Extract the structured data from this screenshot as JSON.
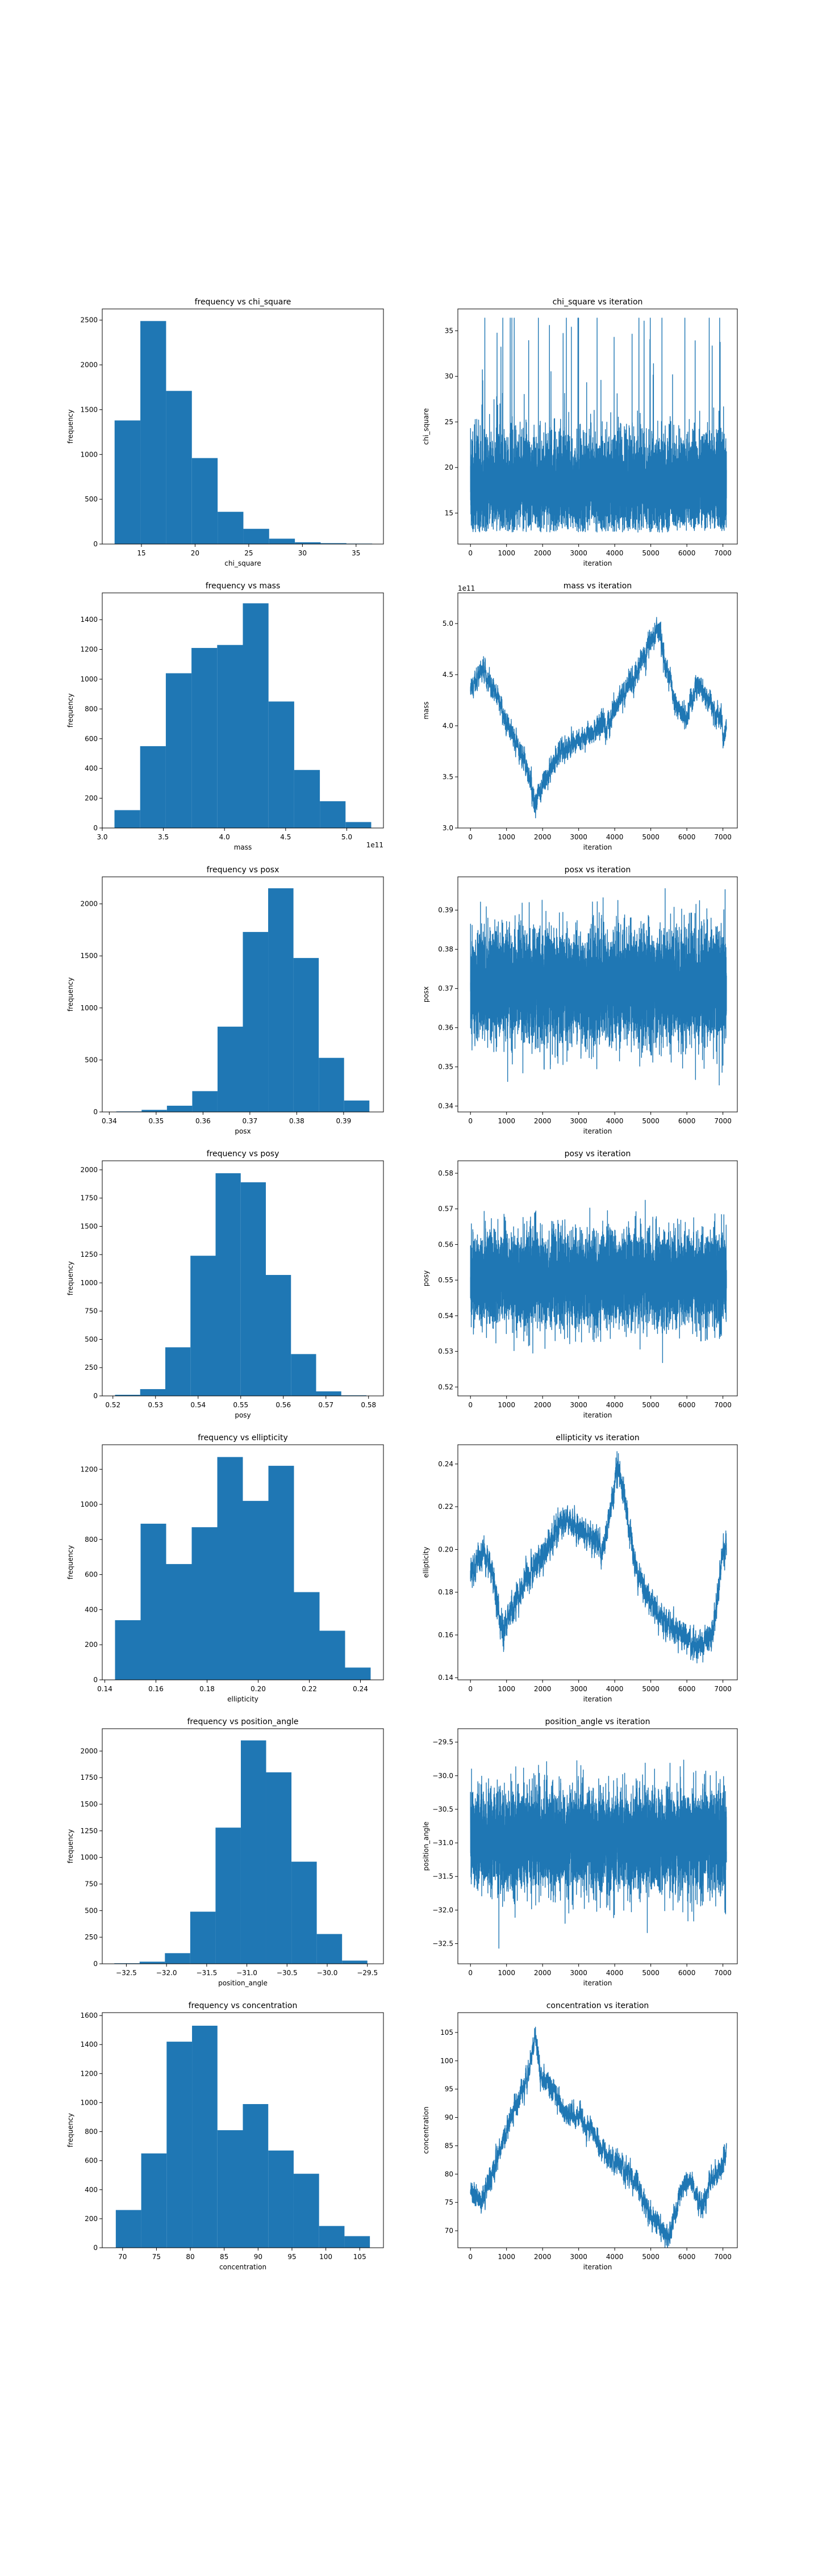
{
  "chart_data": [
    {
      "type": "bar",
      "title": "frequency vs chi_square",
      "xlabel": "chi_square",
      "ylabel": "frequency",
      "xlim": [
        11.35,
        37.55
      ],
      "ylim": [
        0,
        2625
      ],
      "x_ticks": [
        15,
        20,
        25,
        30,
        35
      ],
      "y_ticks": [
        0,
        500,
        1000,
        1500,
        2000,
        2500
      ],
      "bin_edges": [
        12.5,
        14.9,
        17.3,
        19.7,
        22.1,
        24.5,
        26.9,
        29.3,
        31.7,
        34.1,
        36.5
      ],
      "counts": [
        1380,
        2490,
        1710,
        960,
        360,
        170,
        60,
        20,
        10,
        5
      ],
      "color": "#1f77b4"
    },
    {
      "type": "line",
      "title": "chi_square vs iteration",
      "xlabel": "iteration",
      "ylabel": "chi_square",
      "xlim": [
        -350,
        7400
      ],
      "ylim": [
        11.6,
        37.4
      ],
      "x_ticks": [
        0,
        1000,
        2000,
        3000,
        4000,
        5000,
        6000,
        7000
      ],
      "y_ticks": [
        15,
        20,
        25,
        30,
        35
      ],
      "n_points": 7100,
      "trace": {
        "kind": "noise",
        "center": 18.2,
        "spread": 2.6,
        "floor": 12.9,
        "cap": 36.4,
        "spike_rate": 0.006
      },
      "color": "#1f77b4"
    },
    {
      "type": "bar",
      "title": "frequency vs mass",
      "xlabel": "mass",
      "ylabel": "frequency",
      "x_offset_label": "1e11",
      "xlim": [
        3.0,
        5.3
      ],
      "ylim": [
        0,
        1580
      ],
      "x_ticks": [
        3.0,
        3.5,
        4.0,
        4.5,
        5.0
      ],
      "y_ticks": [
        0,
        200,
        400,
        600,
        800,
        1000,
        1200,
        1400
      ],
      "bin_edges": [
        3.1,
        3.31,
        3.52,
        3.73,
        3.94,
        4.15,
        4.36,
        4.57,
        4.78,
        4.99,
        5.2
      ],
      "counts": [
        120,
        550,
        1040,
        1210,
        1230,
        1510,
        850,
        390,
        180,
        40
      ],
      "color": "#1f77b4"
    },
    {
      "type": "line",
      "title": "mass vs iteration",
      "xlabel": "iteration",
      "ylabel": "mass",
      "y_offset_label": "1e11",
      "xlim": [
        -350,
        7400
      ],
      "ylim": [
        3.0,
        5.3
      ],
      "x_ticks": [
        0,
        1000,
        2000,
        3000,
        4000,
        5000,
        6000,
        7000
      ],
      "y_ticks": [
        3.0,
        3.5,
        4.0,
        4.5,
        5.0
      ],
      "n_points": 7100,
      "trace": {
        "kind": "walk",
        "noise": 0.05,
        "knots": [
          [
            0,
            4.35
          ],
          [
            300,
            4.55
          ],
          [
            700,
            4.3
          ],
          [
            1100,
            3.95
          ],
          [
            1500,
            3.65
          ],
          [
            1800,
            3.25
          ],
          [
            2000,
            3.45
          ],
          [
            2500,
            3.75
          ],
          [
            3200,
            3.9
          ],
          [
            3800,
            4.05
          ],
          [
            4300,
            4.35
          ],
          [
            4800,
            4.65
          ],
          [
            5200,
            5.0
          ],
          [
            5400,
            4.6
          ],
          [
            5700,
            4.2
          ],
          [
            6000,
            4.1
          ],
          [
            6300,
            4.4
          ],
          [
            6700,
            4.2
          ],
          [
            7100,
            3.9
          ]
        ]
      },
      "color": "#1f77b4"
    },
    {
      "type": "bar",
      "title": "frequency vs posx",
      "xlabel": "posx",
      "ylabel": "frequency",
      "xlim": [
        0.3385,
        0.3985
      ],
      "ylim": [
        0,
        2260
      ],
      "x_ticks": [
        0.34,
        0.35,
        0.36,
        0.37,
        0.38,
        0.39
      ],
      "y_ticks": [
        0,
        500,
        1000,
        1500,
        2000
      ],
      "bin_edges": [
        0.3415,
        0.3469,
        0.3523,
        0.3577,
        0.3631,
        0.3685,
        0.3739,
        0.3793,
        0.3847,
        0.3901,
        0.3955
      ],
      "counts": [
        5,
        20,
        60,
        200,
        820,
        1730,
        2150,
        1480,
        520,
        110
      ],
      "color": "#1f77b4"
    },
    {
      "type": "line",
      "title": "posx vs iteration",
      "xlabel": "iteration",
      "ylabel": "posx",
      "xlim": [
        -350,
        7400
      ],
      "ylim": [
        0.3385,
        0.3985
      ],
      "x_ticks": [
        0,
        1000,
        2000,
        3000,
        4000,
        5000,
        6000,
        7000
      ],
      "y_ticks": [
        0.34,
        0.35,
        0.36,
        0.37,
        0.38,
        0.39
      ],
      "n_points": 7100,
      "trace": {
        "kind": "noise",
        "center": 0.3705,
        "spread": 0.0068,
        "floor": 0.3415,
        "cap": 0.3955,
        "spike_rate": 0.0
      },
      "color": "#1f77b4"
    },
    {
      "type": "bar",
      "title": "frequency vs posy",
      "xlabel": "posy",
      "ylabel": "frequency",
      "xlim": [
        0.5175,
        0.5835
      ],
      "ylim": [
        0,
        2080
      ],
      "x_ticks": [
        0.52,
        0.53,
        0.54,
        0.55,
        0.56,
        0.57,
        0.58
      ],
      "y_ticks": [
        0,
        250,
        500,
        750,
        1000,
        1250,
        1500,
        1750,
        2000
      ],
      "bin_edges": [
        0.5205,
        0.5264,
        0.5323,
        0.5382,
        0.5441,
        0.55,
        0.5559,
        0.5618,
        0.5677,
        0.5736,
        0.5795
      ],
      "counts": [
        10,
        60,
        430,
        1240,
        1970,
        1890,
        1070,
        370,
        40,
        5
      ],
      "color": "#1f77b4"
    },
    {
      "type": "line",
      "title": "posy vs iteration",
      "xlabel": "iteration",
      "ylabel": "posy",
      "xlim": [
        -350,
        7400
      ],
      "ylim": [
        0.5175,
        0.5835
      ],
      "x_ticks": [
        0,
        1000,
        2000,
        3000,
        4000,
        5000,
        6000,
        7000
      ],
      "y_ticks": [
        0.52,
        0.53,
        0.54,
        0.55,
        0.56,
        0.57,
        0.58
      ],
      "n_points": 7100,
      "trace": {
        "kind": "noise",
        "center": 0.5505,
        "spread": 0.0062,
        "floor": 0.5205,
        "cap": 0.5795,
        "spike_rate": 0.0
      },
      "color": "#1f77b4"
    },
    {
      "type": "bar",
      "title": "frequency vs ellipticity",
      "xlabel": "ellipticity",
      "ylabel": "frequency",
      "xlim": [
        0.139,
        0.249
      ],
      "ylim": [
        0,
        1340
      ],
      "x_ticks": [
        0.14,
        0.16,
        0.18,
        0.2,
        0.22,
        0.24
      ],
      "y_ticks": [
        0,
        200,
        400,
        600,
        800,
        1000,
        1200
      ],
      "bin_edges": [
        0.144,
        0.154,
        0.164,
        0.174,
        0.184,
        0.194,
        0.204,
        0.214,
        0.224,
        0.234,
        0.244
      ],
      "counts": [
        340,
        890,
        660,
        870,
        1270,
        1020,
        1220,
        500,
        280,
        70
      ],
      "color": "#1f77b4"
    },
    {
      "type": "line",
      "title": "ellipticity vs iteration",
      "xlabel": "iteration",
      "ylabel": "ellipticity",
      "xlim": [
        -350,
        7400
      ],
      "ylim": [
        0.139,
        0.249
      ],
      "x_ticks": [
        0,
        1000,
        2000,
        3000,
        4000,
        5000,
        6000,
        7000
      ],
      "y_ticks": [
        0.14,
        0.16,
        0.18,
        0.2,
        0.22,
        0.24
      ],
      "n_points": 7100,
      "trace": {
        "kind": "walk",
        "noise": 0.003,
        "knots": [
          [
            0,
            0.19
          ],
          [
            400,
            0.2
          ],
          [
            700,
            0.18
          ],
          [
            900,
            0.16
          ],
          [
            1200,
            0.175
          ],
          [
            1700,
            0.19
          ],
          [
            2100,
            0.2
          ],
          [
            2600,
            0.215
          ],
          [
            3000,
            0.21
          ],
          [
            3400,
            0.205
          ],
          [
            3700,
            0.2
          ],
          [
            4100,
            0.24
          ],
          [
            4300,
            0.22
          ],
          [
            4600,
            0.19
          ],
          [
            5000,
            0.175
          ],
          [
            5400,
            0.165
          ],
          [
            5800,
            0.16
          ],
          [
            6300,
            0.155
          ],
          [
            6700,
            0.16
          ],
          [
            7000,
            0.2
          ]
        ]
      },
      "color": "#1f77b4"
    },
    {
      "type": "bar",
      "title": "frequency vs position_angle",
      "xlabel": "position_angle",
      "ylabel": "frequency",
      "xlim": [
        -32.8,
        -29.3
      ],
      "ylim": [
        0,
        2210
      ],
      "x_ticks": [
        -32.5,
        -32.0,
        -31.5,
        -31.0,
        -30.5,
        -30.0,
        -29.5
      ],
      "y_ticks": [
        0,
        250,
        500,
        750,
        1000,
        1250,
        1500,
        1750,
        2000
      ],
      "bin_edges": [
        -32.65,
        -32.335,
        -32.02,
        -31.705,
        -31.39,
        -31.075,
        -30.76,
        -30.445,
        -30.13,
        -29.815,
        -29.5
      ],
      "counts": [
        5,
        20,
        100,
        490,
        1280,
        2100,
        1800,
        960,
        280,
        30
      ],
      "color": "#1f77b4"
    },
    {
      "type": "line",
      "title": "position_angle vs iteration",
      "xlabel": "iteration",
      "ylabel": "position_angle",
      "xlim": [
        -350,
        7400
      ],
      "ylim": [
        -32.8,
        -29.3
      ],
      "x_ticks": [
        0,
        1000,
        2000,
        3000,
        4000,
        5000,
        6000,
        7000
      ],
      "y_ticks": [
        -32.5,
        -32.0,
        -31.5,
        -31.0,
        -30.5,
        -30.0,
        -29.5
      ],
      "n_points": 7100,
      "trace": {
        "kind": "noise",
        "center": -30.97,
        "spread": 0.36,
        "floor": -32.65,
        "cap": -29.5,
        "spike_rate": 0.0
      },
      "color": "#1f77b4"
    },
    {
      "type": "bar",
      "title": "frequency vs concentration",
      "xlabel": "concentration",
      "ylabel": "frequency",
      "xlim": [
        67.0,
        108.5
      ],
      "ylim": [
        0,
        1620
      ],
      "x_ticks": [
        70,
        75,
        80,
        85,
        90,
        95,
        100,
        105
      ],
      "y_ticks": [
        0,
        200,
        400,
        600,
        800,
        1000,
        1200,
        1400,
        1600
      ],
      "bin_edges": [
        69.0,
        72.75,
        76.5,
        80.25,
        84.0,
        87.75,
        91.5,
        95.25,
        99.0,
        102.75,
        106.5
      ],
      "counts": [
        260,
        650,
        1420,
        1530,
        810,
        990,
        670,
        510,
        150,
        80
      ],
      "color": "#1f77b4"
    },
    {
      "type": "line",
      "title": "concentration vs iteration",
      "xlabel": "iteration",
      "ylabel": "concentration",
      "xlim": [
        -350,
        7400
      ],
      "ylim": [
        67.0,
        108.5
      ],
      "x_ticks": [
        0,
        1000,
        2000,
        3000,
        4000,
        5000,
        6000,
        7000
      ],
      "y_ticks": [
        70,
        75,
        80,
        85,
        90,
        95,
        100,
        105
      ],
      "n_points": 7100,
      "trace": {
        "kind": "walk",
        "noise": 0.9,
        "knots": [
          [
            0,
            77
          ],
          [
            300,
            75
          ],
          [
            600,
            80
          ],
          [
            900,
            86
          ],
          [
            1200,
            91
          ],
          [
            1500,
            96
          ],
          [
            1700,
            100
          ],
          [
            1800,
            105
          ],
          [
            1950,
            97
          ],
          [
            2200,
            96
          ],
          [
            2600,
            91
          ],
          [
            3000,
            90
          ],
          [
            3400,
            87
          ],
          [
            3800,
            83
          ],
          [
            4200,
            81
          ],
          [
            4600,
            78
          ],
          [
            5000,
            73
          ],
          [
            5300,
            70
          ],
          [
            5500,
            69
          ],
          [
            5700,
            74
          ],
          [
            5900,
            78
          ],
          [
            6100,
            79
          ],
          [
            6400,
            74
          ],
          [
            6700,
            79
          ],
          [
            7000,
            82
          ],
          [
            7100,
            85
          ]
        ]
      },
      "color": "#1f77b4"
    }
  ]
}
